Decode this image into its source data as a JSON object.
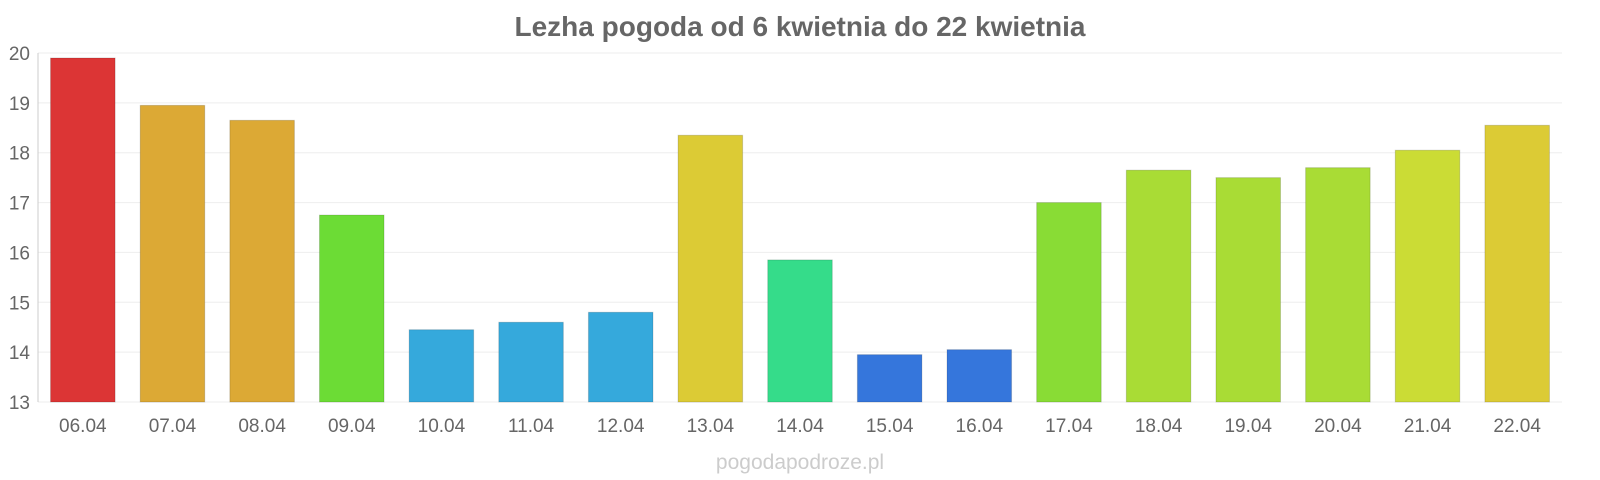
{
  "chart_data": {
    "type": "bar",
    "title": "Lezha pogoda od 6 kwietnia do 22 kwietnia",
    "xlabel": "",
    "ylabel": "",
    "ylim": [
      13,
      20
    ],
    "yticks": [
      "13",
      "14",
      "15",
      "16",
      "17",
      "18",
      "19",
      "20"
    ],
    "grid": true,
    "categories": [
      "06.04",
      "07.04",
      "08.04",
      "09.04",
      "10.04",
      "11.04",
      "12.04",
      "13.04",
      "14.04",
      "15.04",
      "16.04",
      "17.04",
      "18.04",
      "19.04",
      "20.04",
      "21.04",
      "22.04"
    ],
    "values": [
      19.9,
      18.95,
      18.65,
      16.75,
      14.45,
      14.6,
      14.8,
      18.35,
      15.85,
      13.95,
      14.05,
      17.0,
      17.65,
      17.5,
      17.7,
      18.05,
      18.55
    ],
    "colors": [
      "#dc3535",
      "#dca935",
      "#dca935",
      "#6cdc35",
      "#35a9dc",
      "#35a9dc",
      "#35a9dc",
      "#dccb35",
      "#35dc8a",
      "#3576dc",
      "#3576dc",
      "#89dc35",
      "#a9dc35",
      "#a9dc35",
      "#a9dc35",
      "#cbdc35",
      "#dccb35"
    ]
  },
  "watermark": "pogodapodroze.pl"
}
